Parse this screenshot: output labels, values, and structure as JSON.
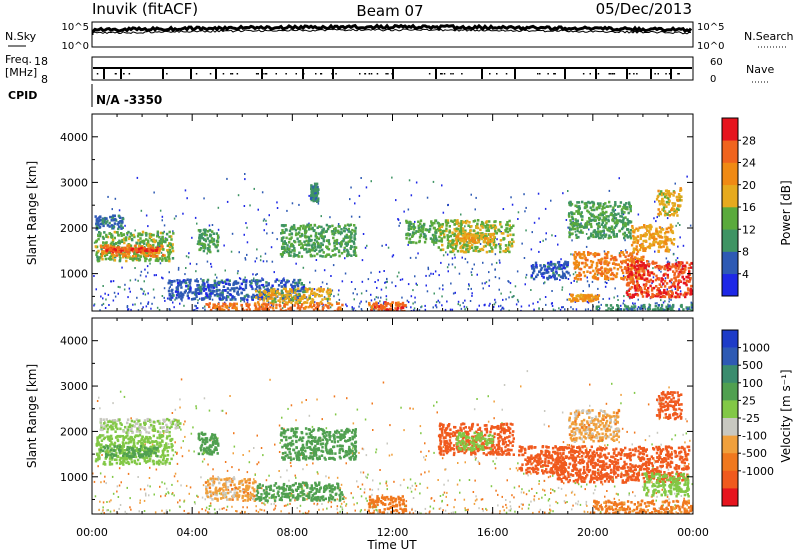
{
  "header": {
    "station": "Inuvik (fitACF)",
    "beam": "Beam 07",
    "date": "05/Dec/2013"
  },
  "strips": {
    "nsky_label": "N.Sky",
    "nsearch_label": "N.Search",
    "nsky_ticks": [
      "10^5",
      "10^0"
    ],
    "nsearch_ticks": [
      "10^5",
      "10^0"
    ],
    "freq_label": "Freq.",
    "freq_unit": "[MHz]",
    "freq_ticks": [
      "18",
      "8"
    ],
    "nave_label": "Nave",
    "nave_ticks": [
      "60",
      "0"
    ],
    "cpid_label": "CPID",
    "cpid_value": "N/A -3350"
  },
  "x_axis": {
    "label": "Time UT",
    "ticks": [
      "00:00",
      "04:00",
      "08:00",
      "12:00",
      "16:00",
      "20:00",
      "00:00"
    ]
  },
  "colors": {
    "power": [
      "#1e28e6",
      "#2e5ab4",
      "#3f9464",
      "#5aaa3c",
      "#e6aa1e",
      "#f08a14",
      "#f0641e",
      "#e6141e"
    ],
    "velocity": [
      "#e6141e",
      "#f05a1e",
      "#f0781e",
      "#f0a03c",
      "#c8c8c0",
      "#82c846",
      "#50a050",
      "#3a8c6e",
      "#2e5ab4",
      "#1e3cc8"
    ]
  },
  "chart_data": [
    {
      "type": "heatmap",
      "title": "",
      "xlabel": "",
      "ylabel": "Slant Range [km]",
      "xlim": [
        0,
        24
      ],
      "ylim": [
        180,
        4500
      ],
      "y_ticks": [
        "1000",
        "2000",
        "3000",
        "4000"
      ],
      "colorbar": {
        "label": "Power [dB]",
        "ticks": [
          "4",
          "8",
          "12",
          "16",
          "20",
          "24",
          "28"
        ],
        "range": [
          0,
          32
        ]
      },
      "regions": [
        {
          "t0": 0.1,
          "t1": 3.2,
          "r0": 1300,
          "r1": 1950,
          "value": 14
        },
        {
          "t0": 0.3,
          "t1": 2.8,
          "r0": 1400,
          "r1": 1650,
          "value": 22
        },
        {
          "t0": 0.5,
          "t1": 2.6,
          "r0": 1500,
          "r1": 1600,
          "value": 27
        },
        {
          "t0": 0.1,
          "t1": 1.2,
          "r0": 2000,
          "r1": 2300,
          "value": 7
        },
        {
          "t0": 4.2,
          "t1": 5.0,
          "r0": 1500,
          "r1": 2000,
          "value": 12
        },
        {
          "t0": 3.0,
          "t1": 8.5,
          "r0": 450,
          "r1": 900,
          "value": 6
        },
        {
          "t0": 4.5,
          "t1": 10.0,
          "r0": 200,
          "r1": 380,
          "value": 25
        },
        {
          "t0": 6.5,
          "t1": 9.5,
          "r0": 380,
          "r1": 700,
          "value": 18
        },
        {
          "t0": 7.5,
          "t1": 10.5,
          "r0": 1400,
          "r1": 2100,
          "value": 12
        },
        {
          "t0": 8.7,
          "t1": 9.0,
          "r0": 2600,
          "r1": 3000,
          "value": 9
        },
        {
          "t0": 11.0,
          "t1": 12.5,
          "r0": 200,
          "r1": 400,
          "value": 26
        },
        {
          "t0": 12.5,
          "t1": 13.8,
          "r0": 1700,
          "r1": 2200,
          "value": 13
        },
        {
          "t0": 13.8,
          "t1": 16.8,
          "r0": 1500,
          "r1": 2200,
          "value": 15
        },
        {
          "t0": 14.5,
          "t1": 16.0,
          "r0": 1700,
          "r1": 1900,
          "value": 19
        },
        {
          "t0": 17.5,
          "t1": 19.0,
          "r0": 900,
          "r1": 1300,
          "value": 6
        },
        {
          "t0": 19.0,
          "t1": 21.5,
          "r0": 1800,
          "r1": 2600,
          "value": 12
        },
        {
          "t0": 19.0,
          "t1": 20.2,
          "r0": 420,
          "r1": 560,
          "value": 21
        },
        {
          "t0": 19.2,
          "t1": 22.0,
          "r0": 900,
          "r1": 1500,
          "value": 23
        },
        {
          "t0": 21.3,
          "t1": 23.9,
          "r0": 500,
          "r1": 1300,
          "value": 28
        },
        {
          "t0": 21.5,
          "t1": 23.2,
          "r0": 1500,
          "r1": 2100,
          "value": 20
        },
        {
          "t0": 22.5,
          "t1": 23.5,
          "r0": 2300,
          "r1": 2900,
          "value": 18
        },
        {
          "t0": 20.0,
          "t1": 24.0,
          "r0": 200,
          "r1": 340,
          "value": 9
        }
      ]
    },
    {
      "type": "heatmap",
      "title": "",
      "xlabel": "Time UT",
      "ylabel": "Slant Range [km]",
      "xlim": [
        0,
        24
      ],
      "ylim": [
        180,
        4500
      ],
      "y_ticks": [
        "1000",
        "2000",
        "3000",
        "4000"
      ],
      "colorbar": {
        "label": "Velocity [m s⁻¹]",
        "ticks": [
          "1000",
          "500",
          "100",
          "25",
          "-25",
          "-100",
          "-500",
          "-1000"
        ]
      },
      "regions": [
        {
          "t0": 0.1,
          "t1": 3.2,
          "r0": 1300,
          "r1": 1950,
          "value": 60
        },
        {
          "t0": 0.3,
          "t1": 2.6,
          "r0": 1450,
          "r1": 1700,
          "value": 140
        },
        {
          "t0": 0.3,
          "t1": 3.5,
          "r0": 2000,
          "r1": 2300,
          "value": 30
        },
        {
          "t0": 4.2,
          "t1": 5.0,
          "r0": 1500,
          "r1": 2000,
          "value": 140
        },
        {
          "t0": 4.5,
          "t1": 6.5,
          "r0": 500,
          "r1": 1000,
          "value": -10
        },
        {
          "t0": 6.5,
          "t1": 10.0,
          "r0": 500,
          "r1": 900,
          "value": 140
        },
        {
          "t0": 7.5,
          "t1": 10.5,
          "r0": 1400,
          "r1": 2100,
          "value": 150
        },
        {
          "t0": 11.0,
          "t1": 12.5,
          "r0": 200,
          "r1": 600,
          "value": -60
        },
        {
          "t0": 13.8,
          "t1": 16.8,
          "r0": 1500,
          "r1": 2200,
          "value": -200
        },
        {
          "t0": 14.5,
          "t1": 16.0,
          "r0": 1600,
          "r1": 2000,
          "value": 60
        },
        {
          "t0": 17.0,
          "t1": 19.0,
          "r0": 1100,
          "r1": 1700,
          "value": -250
        },
        {
          "t0": 19.0,
          "t1": 21.0,
          "r0": 1800,
          "r1": 2500,
          "value": -10
        },
        {
          "t0": 18.5,
          "t1": 23.8,
          "r0": 900,
          "r1": 1700,
          "value": -300
        },
        {
          "t0": 22.0,
          "t1": 23.8,
          "r0": 600,
          "r1": 1100,
          "value": 50
        },
        {
          "t0": 22.5,
          "t1": 23.5,
          "r0": 2300,
          "r1": 2900,
          "value": -250
        },
        {
          "t0": 20.0,
          "t1": 24.0,
          "r0": 200,
          "r1": 500,
          "value": -40
        }
      ]
    }
  ]
}
